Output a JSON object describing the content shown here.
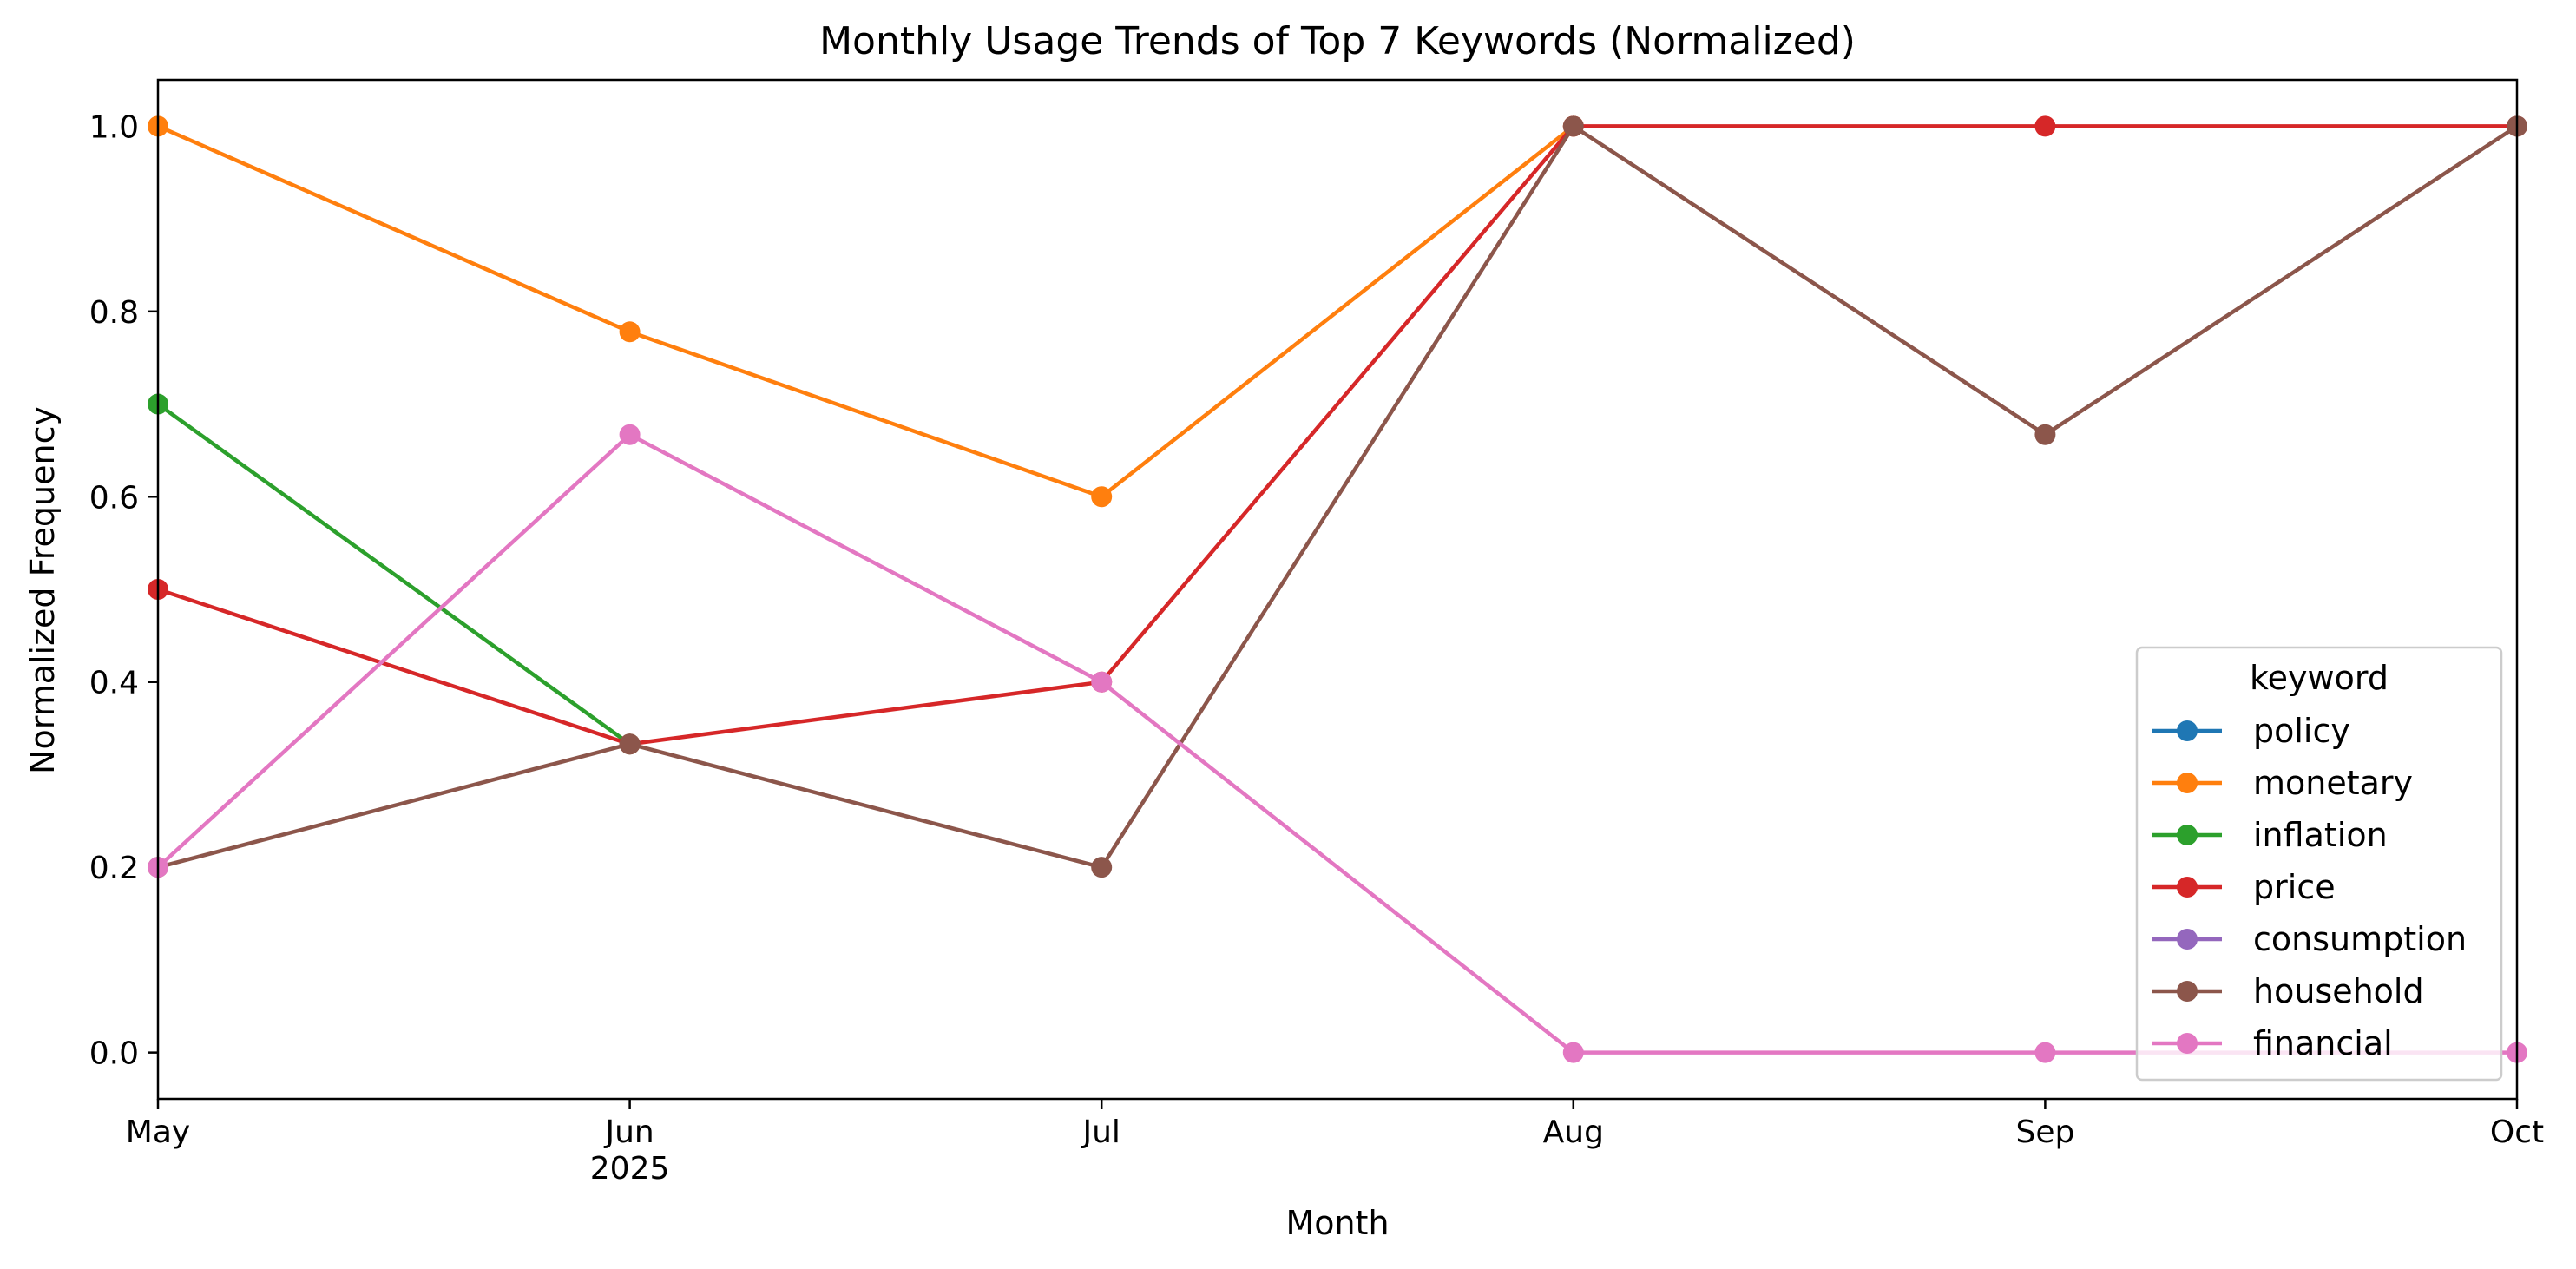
{
  "chart_data": {
    "type": "line",
    "title": "Monthly Usage Trends of Top 7 Keywords (Normalized)",
    "xlabel": "Month",
    "ylabel": "Normalized Frequency",
    "x": [
      "May",
      "Jun",
      "Jul",
      "Aug",
      "Sep",
      "Oct"
    ],
    "x_tick_labels": [
      "May",
      "Jun",
      "Jul",
      "Aug",
      "Sep",
      "Oct"
    ],
    "year_label": "2025",
    "y_ticks": [
      "0.0",
      "0.2",
      "0.4",
      "0.6",
      "0.8",
      "1.0"
    ],
    "ylim": [
      -0.05,
      1.05
    ],
    "grid": false,
    "legend": {
      "title": "keyword",
      "placement": "lower right"
    },
    "series": [
      {
        "name": "policy",
        "color": "#1f77b4",
        "values": [
          null,
          null,
          null,
          null,
          null,
          null
        ]
      },
      {
        "name": "monetary",
        "color": "#ff7f0e",
        "values": [
          1.0,
          0.778,
          0.6,
          1.0,
          null,
          null
        ]
      },
      {
        "name": "inflation",
        "color": "#2ca02c",
        "values": [
          0.7,
          0.333,
          null,
          null,
          null,
          null
        ]
      },
      {
        "name": "price",
        "color": "#d62728",
        "values": [
          0.5,
          0.333,
          0.4,
          1.0,
          1.0,
          1.0
        ]
      },
      {
        "name": "consumption",
        "color": "#9467bd",
        "values": [
          null,
          null,
          null,
          null,
          null,
          null
        ]
      },
      {
        "name": "household",
        "color": "#8c564b",
        "values": [
          0.2,
          0.333,
          0.2,
          1.0,
          0.667,
          1.0
        ]
      },
      {
        "name": "financial",
        "color": "#e377c2",
        "values": [
          0.2,
          0.667,
          0.4,
          0.0,
          0.0,
          0.0
        ]
      }
    ]
  }
}
